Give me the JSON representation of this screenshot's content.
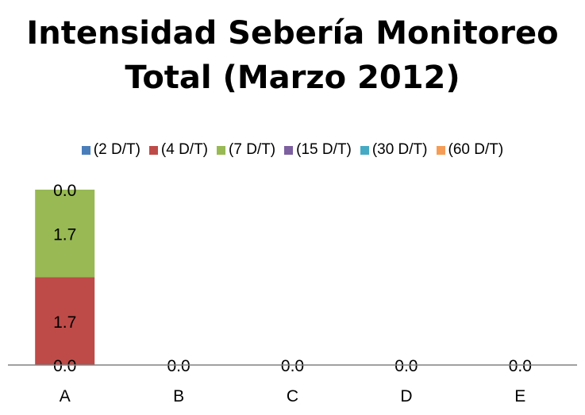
{
  "chart_data": {
    "type": "bar",
    "stacked": true,
    "title_line1": "Intensidad Sebería Monitoreo",
    "title_line2": "Total (Marzo 2012)",
    "categories": [
      "A",
      "B",
      "C",
      "D",
      "E"
    ],
    "series": [
      {
        "name": "(2 D/T)",
        "color": "#4a7ebb",
        "values": [
          0.0,
          0.0,
          0.0,
          0.0,
          0.0
        ]
      },
      {
        "name": "(4 D/T)",
        "color": "#be4b48",
        "values": [
          1.7,
          0.0,
          0.0,
          0.0,
          0.0
        ]
      },
      {
        "name": "(7 D/T)",
        "color": "#98b954",
        "values": [
          1.7,
          0.0,
          0.0,
          0.0,
          0.0
        ]
      },
      {
        "name": "(15 D/T)",
        "color": "#7d60a0",
        "values": [
          0.0,
          0.0,
          0.0,
          0.0,
          0.0
        ]
      },
      {
        "name": "(30 D/T)",
        "color": "#46aac4",
        "values": [
          0.0,
          0.0,
          0.0,
          0.0,
          0.0
        ]
      },
      {
        "name": "(60 D/T)",
        "color": "#f59d56",
        "values": [
          0.0,
          0.0,
          0.0,
          0.0,
          0.0
        ]
      }
    ],
    "data_labels": [
      [
        "0.0",
        "1.7",
        "1.7",
        "0.0"
      ],
      [
        "0.0"
      ],
      [
        "0.0"
      ],
      [
        "0.0"
      ],
      [
        "0.0"
      ]
    ],
    "ylim": [
      0,
      4
    ],
    "grid": false,
    "legend_position": "top"
  }
}
